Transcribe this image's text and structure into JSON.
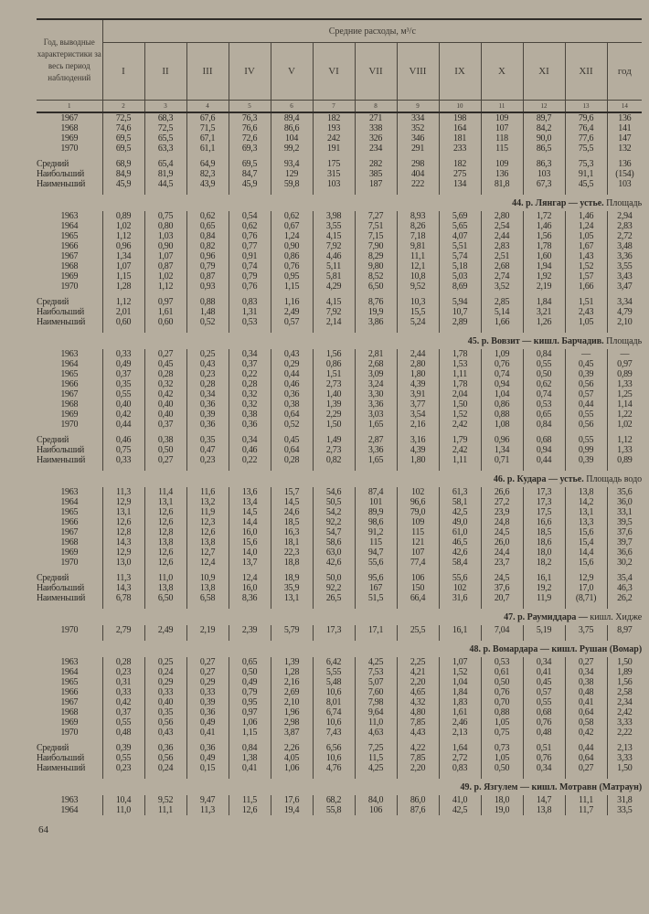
{
  "header": {
    "label_column": "Год, выводные характеристики за весь период наблюдений",
    "group_title": "Средние расходы, м³/с",
    "months": [
      "I",
      "II",
      "III",
      "IV",
      "V",
      "VI",
      "VII",
      "VIII",
      "IX",
      "X",
      "XI",
      "XII",
      "год"
    ],
    "column_numbers": [
      "1",
      "2",
      "3",
      "4",
      "5",
      "6",
      "7",
      "8",
      "9",
      "10",
      "11",
      "12",
      "13",
      "14"
    ]
  },
  "sections": [
    {
      "title": "",
      "years": [
        [
          "1967",
          "72,5",
          "68,3",
          "67,6",
          "76,3",
          "89,4",
          "182",
          "271",
          "334",
          "198",
          "109",
          "89,7",
          "79,6",
          "136"
        ],
        [
          "1968",
          "74,6",
          "72,5",
          "71,5",
          "76,6",
          "86,6",
          "193",
          "338",
          "352",
          "164",
          "107",
          "84,2",
          "76,4",
          "141"
        ],
        [
          "1969",
          "69,5",
          "65,5",
          "67,1",
          "72,6",
          "104",
          "242",
          "326",
          "346",
          "181",
          "118",
          "90,0",
          "77,6",
          "147"
        ],
        [
          "1970",
          "69,5",
          "63,3",
          "61,1",
          "69,3",
          "99,2",
          "191",
          "234",
          "291",
          "233",
          "115",
          "86,5",
          "75,5",
          "132"
        ]
      ],
      "stats": [
        [
          "Средний",
          "68,9",
          "65,4",
          "64,9",
          "69,5",
          "93,4",
          "175",
          "282",
          "298",
          "182",
          "109",
          "86,3",
          "75,3",
          "136"
        ],
        [
          "Наибольший",
          "84,9",
          "81,9",
          "82,3",
          "84,7",
          "129",
          "315",
          "385",
          "404",
          "275",
          "136",
          "103",
          "91,1",
          "(154)"
        ],
        [
          "Наименьший",
          "45,9",
          "44,5",
          "43,9",
          "45,9",
          "59,8",
          "103",
          "187",
          "222",
          "134",
          "81,8",
          "67,3",
          "45,5",
          "103"
        ]
      ]
    },
    {
      "title": "44. р. Лянгар — устье.",
      "title_rest": "Площадь",
      "years": [
        [
          "1963",
          "0,89",
          "0,75",
          "0,62",
          "0,54",
          "0,62",
          "3,98",
          "7,27",
          "8,93",
          "5,69",
          "2,80",
          "1,72",
          "1,46",
          "2,94"
        ],
        [
          "1964",
          "1,02",
          "0,80",
          "0,65",
          "0,62",
          "0,67",
          "3,55",
          "7,51",
          "8,26",
          "5,65",
          "2,54",
          "1,46",
          "1,24",
          "2,83"
        ],
        [
          "1965",
          "1,12",
          "1,03",
          "0,84",
          "0,76",
          "1,24",
          "4,15",
          "7,15",
          "7,18",
          "4,07",
          "2,44",
          "1,56",
          "1,05",
          "2,72"
        ],
        [
          "1966",
          "0,96",
          "0,90",
          "0,82",
          "0,77",
          "0,90",
          "7,92",
          "7,90",
          "9,81",
          "5,51",
          "2,83",
          "1,78",
          "1,67",
          "3,48"
        ],
        [
          "1967",
          "1,34",
          "1,07",
          "0,96",
          "0,91",
          "0,86",
          "4,46",
          "8,29",
          "11,1",
          "5,74",
          "2,51",
          "1,60",
          "1,43",
          "3,36"
        ],
        [
          "1968",
          "1,07",
          "0,87",
          "0,79",
          "0,74",
          "0,76",
          "5,11",
          "9,80",
          "12,1",
          "5,18",
          "2,68",
          "1,94",
          "1,52",
          "3,55"
        ],
        [
          "1969",
          "1,15",
          "1,02",
          "0,87",
          "0,79",
          "0,95",
          "5,81",
          "8,52",
          "10,8",
          "5,03",
          "2,74",
          "1,92",
          "1,57",
          "3,43"
        ],
        [
          "1970",
          "1,28",
          "1,12",
          "0,93",
          "0,76",
          "1,15",
          "4,29",
          "6,50",
          "9,52",
          "8,69",
          "3,52",
          "2,19",
          "1,66",
          "3,47"
        ]
      ],
      "stats": [
        [
          "Средний",
          "1,12",
          "0,97",
          "0,88",
          "0,83",
          "1,16",
          "4,15",
          "8,76",
          "10,3",
          "5,94",
          "2,85",
          "1,84",
          "1,51",
          "3,34"
        ],
        [
          "Наибольший",
          "2,01",
          "1,61",
          "1,48",
          "1,31",
          "2,49",
          "7,92",
          "19,9",
          "15,5",
          "10,7",
          "5,14",
          "3,21",
          "2,43",
          "4,79"
        ],
        [
          "Наименьший",
          "0,60",
          "0,60",
          "0,52",
          "0,53",
          "0,57",
          "2,14",
          "3,86",
          "5,24",
          "2,89",
          "1,66",
          "1,26",
          "1,05",
          "2,10"
        ]
      ]
    },
    {
      "title": "45. р. Вовзит — кишл. Барчадив.",
      "title_rest": "Площадь",
      "years": [
        [
          "1963",
          "0,33",
          "0,27",
          "0,25",
          "0,34",
          "0,43",
          "1,56",
          "2,81",
          "2,44",
          "1,78",
          "1,09",
          "0,84",
          "—",
          "—"
        ],
        [
          "1964",
          "0,49",
          "0,45",
          "0,43",
          "0,37",
          "0,29",
          "0,86",
          "2,68",
          "2,80",
          "1,53",
          "0,76",
          "0,55",
          "0,45",
          "0,97"
        ],
        [
          "1965",
          "0,37",
          "0,28",
          "0,23",
          "0,22",
          "0,44",
          "1,51",
          "3,09",
          "1,80",
          "1,11",
          "0,74",
          "0,50",
          "0,39",
          "0,89"
        ],
        [
          "1966",
          "0,35",
          "0,32",
          "0,28",
          "0,28",
          "0,46",
          "2,73",
          "3,24",
          "4,39",
          "1,78",
          "0,94",
          "0,62",
          "0,56",
          "1,33"
        ],
        [
          "1967",
          "0,55",
          "0,42",
          "0,34",
          "0,32",
          "0,36",
          "1,40",
          "3,30",
          "3,91",
          "2,04",
          "1,04",
          "0,74",
          "0,57",
          "1,25"
        ],
        [
          "1968",
          "0,40",
          "0,40",
          "0,36",
          "0,32",
          "0,38",
          "1,39",
          "3,36",
          "3,77",
          "1,50",
          "0,86",
          "0,53",
          "0,44",
          "1,14"
        ],
        [
          "1969",
          "0,42",
          "0,40",
          "0,39",
          "0,38",
          "0,64",
          "2,29",
          "3,03",
          "3,54",
          "1,52",
          "0,88",
          "0,65",
          "0,55",
          "1,22"
        ],
        [
          "1970",
          "0,44",
          "0,37",
          "0,36",
          "0,36",
          "0,52",
          "1,50",
          "1,65",
          "2,16",
          "2,42",
          "1,08",
          "0,84",
          "0,56",
          "1,02"
        ]
      ],
      "stats": [
        [
          "Средний",
          "0,46",
          "0,38",
          "0,35",
          "0,34",
          "0,45",
          "1,49",
          "2,87",
          "3,16",
          "1,79",
          "0,96",
          "0,68",
          "0,55",
          "1,12"
        ],
        [
          "Наибольший",
          "0,75",
          "0,50",
          "0,47",
          "0,46",
          "0,64",
          "2,73",
          "3,36",
          "4,39",
          "2,42",
          "1,34",
          "0,94",
          "0,99",
          "1,33"
        ],
        [
          "Наименьший",
          "0,33",
          "0,27",
          "0,23",
          "0,22",
          "0,28",
          "0,82",
          "1,65",
          "1,80",
          "1,11",
          "0,71",
          "0,44",
          "0,39",
          "0,89"
        ]
      ]
    },
    {
      "title": "46. р. Кудара — устье.",
      "title_rest": "Площадь водо",
      "years": [
        [
          "1963",
          "11,3",
          "11,4",
          "11,6",
          "13,6",
          "15,7",
          "54,6",
          "87,4",
          "102",
          "61,3",
          "26,6",
          "17,3",
          "13,8",
          "35,6"
        ],
        [
          "1964",
          "12,9",
          "13,1",
          "13,2",
          "13,4",
          "14,5",
          "50,5",
          "101",
          "96,6",
          "58,1",
          "27,2",
          "17,3",
          "14,2",
          "36,0"
        ],
        [
          "1965",
          "13,1",
          "12,6",
          "11,9",
          "14,5",
          "24,6",
          "54,2",
          "89,9",
          "79,0",
          "42,5",
          "23,9",
          "17,5",
          "13,1",
          "33,1"
        ],
        [
          "1966",
          "12,6",
          "12,6",
          "12,3",
          "14,4",
          "18,5",
          "92,2",
          "98,6",
          "109",
          "49,0",
          "24,8",
          "16,6",
          "13,3",
          "39,5"
        ],
        [
          "1967",
          "12,8",
          "12,8",
          "12,6",
          "16,0",
          "16,3",
          "54,7",
          "91,2",
          "115",
          "61,0",
          "24,5",
          "18,5",
          "15,6",
          "37,6"
        ],
        [
          "1968",
          "14,3",
          "13,8",
          "13,8",
          "15,6",
          "18,1",
          "58,6",
          "115",
          "121",
          "46,5",
          "26,0",
          "18,6",
          "15,4",
          "39,7"
        ],
        [
          "1969",
          "12,9",
          "12,6",
          "12,7",
          "14,0",
          "22,3",
          "63,0",
          "94,7",
          "107",
          "42,6",
          "24,4",
          "18,0",
          "14,4",
          "36,6"
        ],
        [
          "1970",
          "13,0",
          "12,6",
          "12,4",
          "13,7",
          "18,8",
          "42,6",
          "55,6",
          "77,4",
          "58,4",
          "23,7",
          "18,2",
          "15,6",
          "30,2"
        ]
      ],
      "stats": [
        [
          "Средний",
          "11,3",
          "11,0",
          "10,9",
          "12,4",
          "18,9",
          "50,0",
          "95,6",
          "106",
          "55,6",
          "24,5",
          "16,1",
          "12,9",
          "35,4"
        ],
        [
          "Наибольший",
          "14,3",
          "13,8",
          "13,8",
          "16,0",
          "35,9",
          "92,2",
          "167",
          "150",
          "102",
          "37,6",
          "19,2",
          "17,0",
          "46,3"
        ],
        [
          "Наименьший",
          "6,78",
          "6,50",
          "6,58",
          "8,36",
          "13,1",
          "26,5",
          "51,5",
          "66,4",
          "31,6",
          "20,7",
          "11,9",
          "(8,71)",
          "26,2"
        ]
      ]
    },
    {
      "title": "47. р. Раумиддара —",
      "title_rest": "кишл. Хидже",
      "years": [
        [
          "1970",
          "2,79",
          "2,49",
          "2,19",
          "2,39",
          "5,79",
          "17,3",
          "17,1",
          "25,5",
          "16,1",
          "7,04",
          "5,19",
          "3,75",
          "8,97"
        ]
      ],
      "stats": []
    },
    {
      "title": "48. р. Вомардара — кишл. Рушан (Вомар)",
      "title_rest": "",
      "years": [
        [
          "1963",
          "0,28",
          "0,25",
          "0,27",
          "0,65",
          "1,39",
          "6,42",
          "4,25",
          "2,25",
          "1,07",
          "0,53",
          "0,34",
          "0,27",
          "1,50"
        ],
        [
          "1964",
          "0,23",
          "0,24",
          "0,27",
          "0,50",
          "1,28",
          "5,55",
          "7,53",
          "4,21",
          "1,52",
          "0,61",
          "0,41",
          "0,34",
          "1,89"
        ],
        [
          "1965",
          "0,31",
          "0,29",
          "0,29",
          "0,49",
          "2,16",
          "5,48",
          "5,07",
          "2,20",
          "1,04",
          "0,50",
          "0,45",
          "0,38",
          "1,56"
        ],
        [
          "1966",
          "0,33",
          "0,33",
          "0,33",
          "0,79",
          "2,69",
          "10,6",
          "7,60",
          "4,65",
          "1,84",
          "0,76",
          "0,57",
          "0,48",
          "2,58"
        ],
        [
          "1967",
          "0,42",
          "0,40",
          "0,39",
          "0,95",
          "2,10",
          "8,01",
          "7,98",
          "4,32",
          "1,83",
          "0,70",
          "0,55",
          "0,41",
          "2,34"
        ],
        [
          "1968",
          "0,37",
          "0,35",
          "0,36",
          "0,97",
          "1,96",
          "6,74",
          "9,64",
          "4,80",
          "1,61",
          "0,88",
          "0,68",
          "0,64",
          "2,42"
        ],
        [
          "1969",
          "0,55",
          "0,56",
          "0,49",
          "1,06",
          "2,98",
          "10,6",
          "11,0",
          "7,85",
          "2,46",
          "1,05",
          "0,76",
          "0,58",
          "3,33"
        ],
        [
          "1970",
          "0,48",
          "0,43",
          "0,41",
          "1,15",
          "3,87",
          "7,43",
          "4,63",
          "4,43",
          "2,13",
          "0,75",
          "0,48",
          "0,42",
          "2,22"
        ]
      ],
      "stats": [
        [
          "Средний",
          "0,39",
          "0,36",
          "0,36",
          "0,84",
          "2,26",
          "6,56",
          "7,25",
          "4,22",
          "1,64",
          "0,73",
          "0,51",
          "0,44",
          "2,13"
        ],
        [
          "Наибольший",
          "0,55",
          "0,56",
          "0,49",
          "1,38",
          "4,05",
          "10,6",
          "11,5",
          "7,85",
          "2,72",
          "1,05",
          "0,76",
          "0,64",
          "3,33"
        ],
        [
          "Наименьший",
          "0,23",
          "0,24",
          "0,15",
          "0,41",
          "1,06",
          "4,76",
          "4,25",
          "2,20",
          "0,83",
          "0,50",
          "0,34",
          "0,27",
          "1,50"
        ]
      ]
    },
    {
      "title": "49. р. Язгулем — кишл. Мотравн (Матраун)",
      "title_rest": "",
      "years": [
        [
          "1963",
          "10,4",
          "9,52",
          "9,47",
          "11,5",
          "17,6",
          "68,2",
          "84,0",
          "86,0",
          "41,0",
          "18,0",
          "14,7",
          "11,1",
          "31,8"
        ],
        [
          "1964",
          "11,0",
          "11,1",
          "11,3",
          "12,6",
          "19,4",
          "55,8",
          "106",
          "87,6",
          "42,5",
          "19,0",
          "13,8",
          "11,7",
          "33,5"
        ]
      ],
      "stats": []
    }
  ],
  "page_number": "64"
}
